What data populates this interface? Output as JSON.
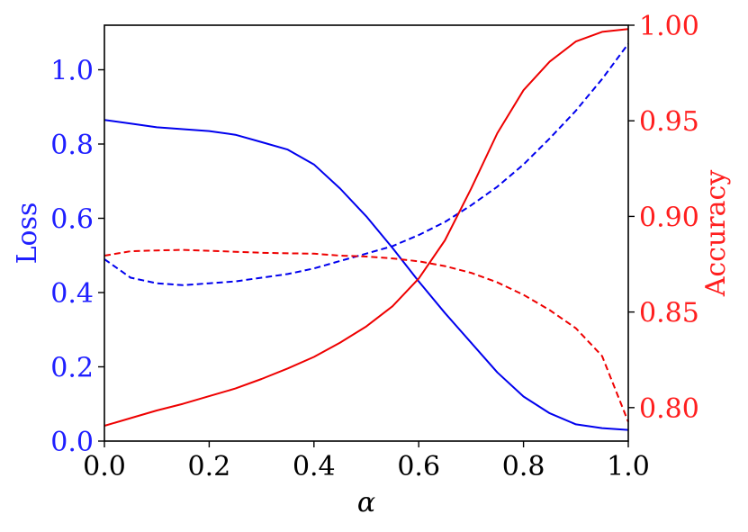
{
  "chart_data": {
    "type": "line",
    "xlabel": "α",
    "ylabel_left": "Loss",
    "ylabel_right": "Accuracy",
    "xlim": [
      0.0,
      1.0
    ],
    "ylim_left": [
      0.0,
      1.12
    ],
    "ylim_right": [
      0.7825,
      1.0
    ],
    "x_ticks": [
      "0.0",
      "0.2",
      "0.4",
      "0.6",
      "0.8",
      "1.0"
    ],
    "y_ticks_left": [
      "0.0",
      "0.2",
      "0.4",
      "0.6",
      "0.8",
      "1.0"
    ],
    "y_ticks_right": [
      "0.80",
      "0.85",
      "0.90",
      "0.95",
      "1.00"
    ],
    "colors": {
      "left_axis": "#1f1fff",
      "right_axis": "#ff1f1f",
      "loss": "#0000ee",
      "accuracy": "#ee0000"
    },
    "series": [
      {
        "axis": "left",
        "color": "#0000ee",
        "dash": "solid",
        "x": [
          0.0,
          0.05,
          0.1,
          0.15,
          0.2,
          0.25,
          0.3,
          0.35,
          0.4,
          0.45,
          0.5,
          0.55,
          0.6,
          0.65,
          0.7,
          0.75,
          0.8,
          0.85,
          0.9,
          0.95,
          1.0
        ],
        "y": [
          0.865,
          0.855,
          0.845,
          0.84,
          0.835,
          0.825,
          0.805,
          0.785,
          0.745,
          0.68,
          0.605,
          0.52,
          0.43,
          0.345,
          0.265,
          0.185,
          0.12,
          0.075,
          0.045,
          0.035,
          0.03
        ]
      },
      {
        "axis": "left",
        "color": "#0000ee",
        "dash": "dashed",
        "x": [
          0.0,
          0.05,
          0.1,
          0.15,
          0.2,
          0.25,
          0.3,
          0.35,
          0.4,
          0.45,
          0.5,
          0.55,
          0.6,
          0.65,
          0.7,
          0.75,
          0.8,
          0.85,
          0.9,
          0.95,
          1.0
        ],
        "y": [
          0.49,
          0.44,
          0.425,
          0.42,
          0.425,
          0.43,
          0.44,
          0.45,
          0.465,
          0.485,
          0.505,
          0.525,
          0.555,
          0.59,
          0.635,
          0.685,
          0.745,
          0.815,
          0.89,
          0.975,
          1.07
        ]
      },
      {
        "axis": "right",
        "color": "#ee0000",
        "dash": "solid",
        "x": [
          0.0,
          0.05,
          0.1,
          0.15,
          0.2,
          0.25,
          0.3,
          0.35,
          0.4,
          0.45,
          0.5,
          0.55,
          0.6,
          0.65,
          0.7,
          0.75,
          0.8,
          0.85,
          0.9,
          0.95,
          1.0
        ],
        "y": [
          0.7905,
          0.7945,
          0.7985,
          0.802,
          0.806,
          0.81,
          0.815,
          0.8205,
          0.8265,
          0.834,
          0.8425,
          0.853,
          0.8675,
          0.8875,
          0.9145,
          0.9435,
          0.966,
          0.981,
          0.9915,
          0.9965,
          0.998
        ]
      },
      {
        "axis": "right",
        "color": "#ee0000",
        "dash": "dashed",
        "x": [
          0.0,
          0.05,
          0.1,
          0.15,
          0.2,
          0.25,
          0.3,
          0.35,
          0.4,
          0.45,
          0.5,
          0.55,
          0.6,
          0.65,
          0.7,
          0.75,
          0.8,
          0.85,
          0.9,
          0.95,
          1.0
        ],
        "y": [
          0.8795,
          0.8818,
          0.8822,
          0.8825,
          0.882,
          0.8815,
          0.881,
          0.8807,
          0.8805,
          0.8795,
          0.879,
          0.878,
          0.8765,
          0.874,
          0.8705,
          0.8655,
          0.859,
          0.851,
          0.8415,
          0.827,
          0.7925
        ]
      }
    ]
  }
}
